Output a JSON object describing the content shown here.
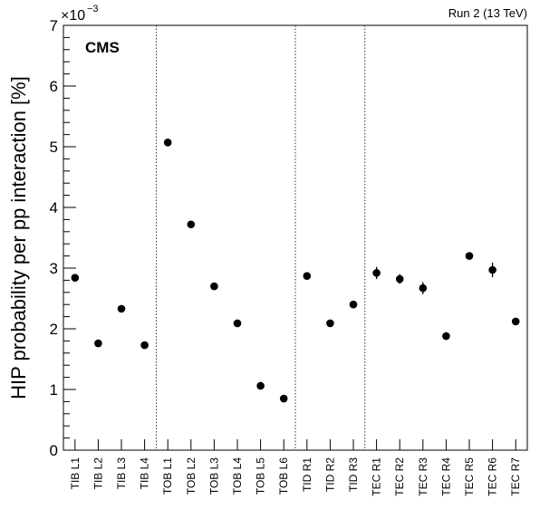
{
  "chart_data": {
    "type": "scatter",
    "title": "",
    "experiment_label": "CMS",
    "run_label": "Run 2 (13 TeV)",
    "xlabel": "",
    "ylabel": "HIP probability per pp interaction [%]",
    "y_multiplier_base": "×10",
    "y_multiplier_exponent": "−3",
    "ylim": [
      0,
      7
    ],
    "yticks": [
      "0",
      "1",
      "2",
      "3",
      "4",
      "5",
      "6",
      "7"
    ],
    "grid": false,
    "categories": [
      "TIB L1",
      "TIB L2",
      "TIB L3",
      "TIB L4",
      "TOB L1",
      "TOB L2",
      "TOB L3",
      "TOB L4",
      "TOB L5",
      "TOB L6",
      "TID R1",
      "TID R2",
      "TID R3",
      "TEC R1",
      "TEC R2",
      "TEC R3",
      "TEC R4",
      "TEC R5",
      "TEC R6",
      "TEC R7"
    ],
    "values": [
      2.84,
      1.76,
      2.33,
      1.73,
      5.07,
      3.72,
      2.7,
      2.09,
      1.06,
      0.85,
      2.87,
      2.09,
      2.4,
      2.92,
      2.82,
      2.67,
      1.88,
      3.2,
      2.97,
      2.12
    ],
    "errors": [
      0.04,
      0.03,
      0.03,
      0.03,
      0.05,
      0.04,
      0.04,
      0.03,
      0.03,
      0.03,
      0.04,
      0.03,
      0.04,
      0.1,
      0.08,
      0.1,
      0.05,
      0.05,
      0.12,
      0.05
    ],
    "separators_after_category": [
      "TIB L4",
      "TOB L6",
      "TID R3"
    ]
  }
}
